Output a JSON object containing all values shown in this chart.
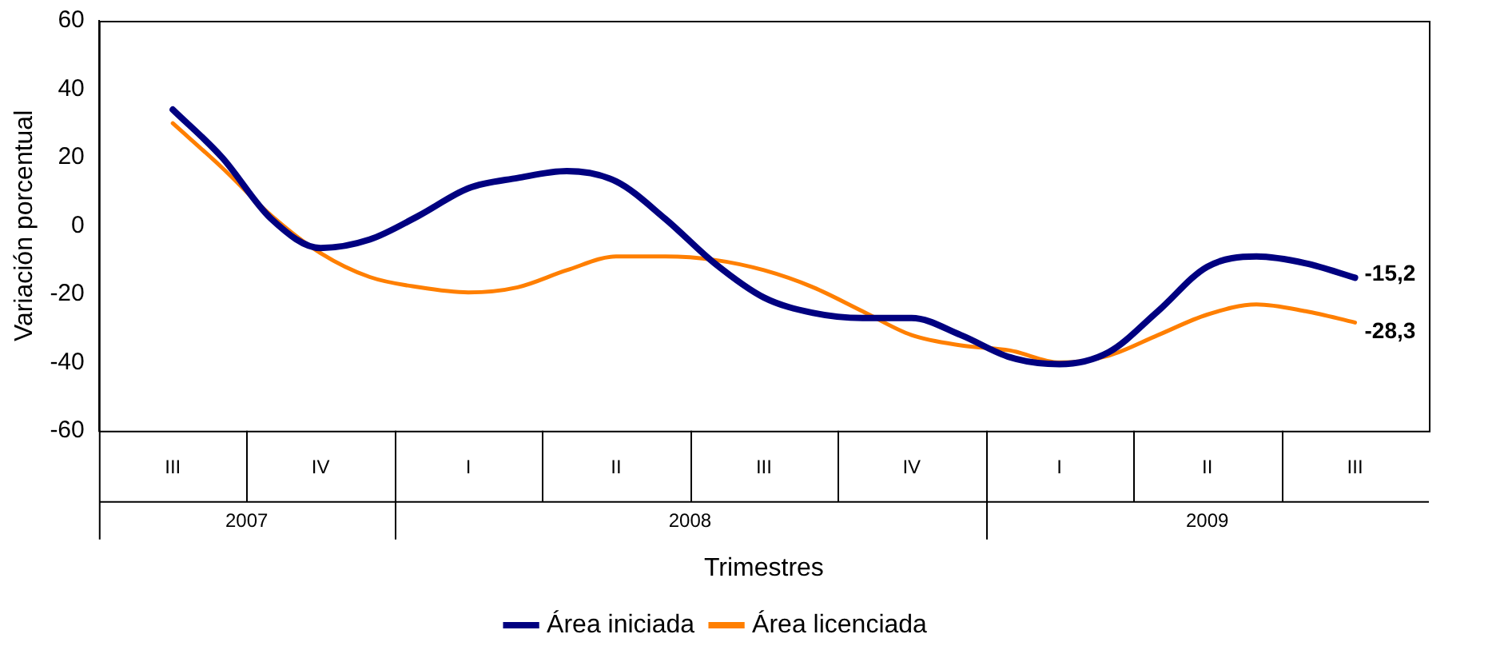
{
  "chart_data": {
    "type": "line",
    "xlabel": "Trimestres",
    "ylabel": "Variación porcentual",
    "categories": [
      "III",
      null,
      null,
      "IV",
      null,
      null,
      "I",
      null,
      null,
      "II",
      null,
      null,
      "III",
      null,
      null,
      "IV",
      null,
      null,
      "I",
      null,
      null,
      "II",
      null,
      null,
      "III"
    ],
    "series": [
      {
        "name": "Área iniciada",
        "color": "#000080",
        "values": [
          34,
          20,
          2,
          -6.5,
          -4,
          3,
          11,
          14,
          16,
          13,
          2,
          -11,
          -21,
          -25.5,
          -27,
          -27,
          -32,
          -38.5,
          -40.5,
          -37,
          -25,
          -12,
          -9,
          -11,
          -15.2
        ],
        "value_labels": [
          null,
          null,
          null,
          null,
          null,
          null,
          null,
          null,
          null,
          null,
          null,
          null,
          null,
          null,
          null,
          null,
          null,
          null,
          null,
          null,
          null,
          null,
          null,
          null,
          "-15,2"
        ]
      },
      {
        "name": "Área licenciada",
        "color": "#ff7f00",
        "values": [
          30,
          17,
          3,
          -8,
          -15,
          -18,
          -19.5,
          -18,
          -13,
          -9,
          -9,
          -10,
          -13,
          -18,
          -25,
          -32,
          -35,
          -36.5,
          -40,
          -38,
          -32,
          -26,
          -23,
          -25,
          -28.3
        ],
        "value_labels": [
          null,
          null,
          null,
          null,
          null,
          null,
          null,
          null,
          null,
          null,
          null,
          null,
          null,
          null,
          null,
          null,
          null,
          null,
          null,
          null,
          null,
          null,
          null,
          null,
          "-28,3"
        ]
      }
    ],
    "annotations": [
      "2007",
      "2008",
      "2009"
    ],
    "ylim": [
      -60,
      60
    ],
    "yticks": [
      -60,
      -40,
      -20,
      0,
      20,
      40,
      60
    ],
    "grid": false,
    "legend": "bottom",
    "marker": "none",
    "line_style": "solid"
  }
}
